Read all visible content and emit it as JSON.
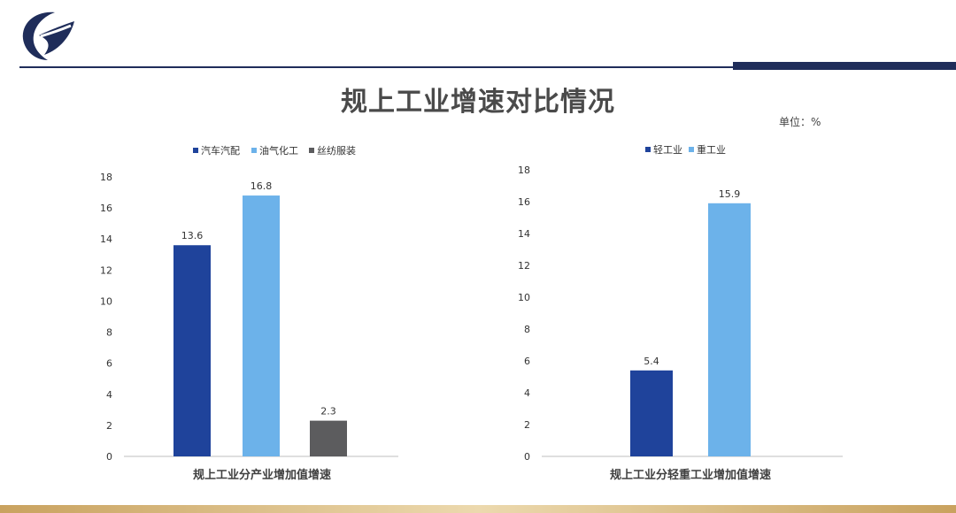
{
  "page": {
    "title": "规上工业增速对比情况",
    "unit_label": "单位：%"
  },
  "colors": {
    "dark_blue": "#1f439b",
    "light_blue": "#6cb2ea",
    "gray": "#5c5c5e",
    "navy": "#1f2d5a"
  },
  "chart_data": [
    {
      "type": "bar",
      "title": "",
      "xlabel": "规上工业分产业增加值增速",
      "ylabel": "",
      "ylim": [
        0,
        18
      ],
      "yticks": [
        0,
        2,
        4,
        6,
        8,
        10,
        12,
        14,
        16,
        18
      ],
      "grid": false,
      "legend_position": "top",
      "categories": [
        "汽车汽配",
        "油气化工",
        "丝纺服装"
      ],
      "values": [
        13.6,
        16.8,
        2.3
      ],
      "data_labels": [
        "13.6",
        "16.8",
        "2.3"
      ],
      "colors": [
        "#1f439b",
        "#6cb2ea",
        "#5c5c5e"
      ],
      "legend": [
        "汽车汽配",
        "油气化工",
        "丝纺服装"
      ]
    },
    {
      "type": "bar",
      "title": "",
      "xlabel": "规上工业分轻重工业增加值增速",
      "ylabel": "",
      "ylim": [
        0,
        18
      ],
      "yticks": [
        0,
        2,
        4,
        6,
        8,
        10,
        12,
        14,
        16,
        18
      ],
      "grid": false,
      "legend_position": "top",
      "categories": [
        "轻工业",
        "重工业"
      ],
      "values": [
        5.4,
        15.9
      ],
      "data_labels": [
        "5.4",
        "15.9"
      ],
      "colors": [
        "#1f439b",
        "#6cb2ea"
      ],
      "legend": [
        "轻工业",
        "重工业"
      ]
    }
  ]
}
